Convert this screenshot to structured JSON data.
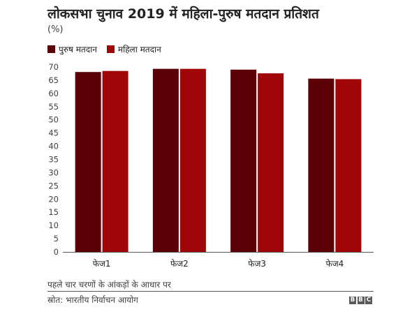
{
  "title": "लोकसभा चुनाव 2019 में महिला-पुरुष मतदान प्रतिशत",
  "subtitle": "(%)",
  "footnote": "पहले चार चरणों के आंकड़ों के आधार पर",
  "source": "स्रोत: भारतीय निर्वाचन आयोग",
  "logo": {
    "letters": [
      "B",
      "B",
      "C"
    ],
    "color": "#5a5a5a"
  },
  "chart_data": {
    "type": "bar",
    "categories": [
      "फेज1",
      "फेज2",
      "फेज3",
      "फेज4"
    ],
    "series": [
      {
        "name": "पुरुष मतदान",
        "color": "#5c0008",
        "values": [
          68.1,
          69.3,
          69.0,
          65.6
        ]
      },
      {
        "name": "महिला मतदान",
        "color": "#a00508",
        "values": [
          68.5,
          69.3,
          67.6,
          65.4
        ]
      }
    ],
    "ylim": [
      0,
      70
    ],
    "yticks": [
      0,
      5,
      10,
      15,
      20,
      25,
      30,
      35,
      40,
      45,
      50,
      55,
      60,
      65,
      70
    ],
    "grid": false,
    "legend_position": "top-left"
  }
}
